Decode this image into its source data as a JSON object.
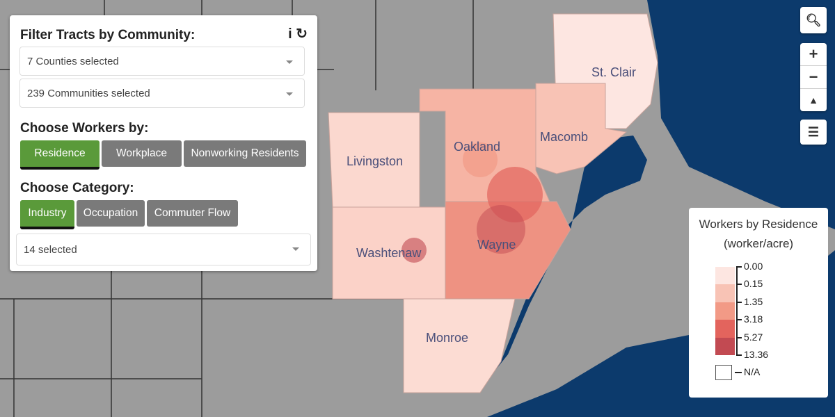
{
  "filter_panel": {
    "title": "Filter Tracts by Community:",
    "counties": "7 Counties selected",
    "communities": "239 Communities selected",
    "workers_heading": "Choose Workers by:",
    "worker_buttons": [
      "Residence",
      "Workplace",
      "Nonworking Residents"
    ],
    "category_heading": "Choose Category:",
    "category_buttons": [
      "Industry",
      "Occupation",
      "Commuter Flow"
    ],
    "category_select": "14 selected"
  },
  "map_labels": [
    "St. Clair",
    "Oakland",
    "Macomb",
    "Livingston",
    "Washtenaw",
    "Wayne",
    "Monroe"
  ],
  "legend": {
    "title": "Workers by Residence",
    "unit": "(worker/acre)",
    "breaks": [
      "0.00",
      "0.15",
      "1.35",
      "3.18",
      "5.27",
      "13.36"
    ],
    "colors": [
      "#fde6e1",
      "#f8c3b5",
      "#f29a86",
      "#e3645d",
      "#c24a52"
    ],
    "na": "N/A"
  }
}
